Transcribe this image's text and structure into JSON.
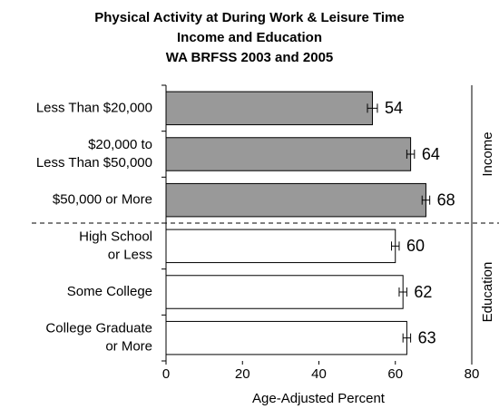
{
  "chart_data": {
    "type": "hbar",
    "title": "Physical Activity at During Work & Leisure Time\nIncome and Education\nWA BRFSS 2003 and 2005",
    "categories": [
      "Less Than $20,000",
      "$20,000 to\nLess Than $50,000",
      "$50,000 or More",
      "High School\nor Less",
      "Some College",
      "College Graduate\nor More"
    ],
    "series": [
      {
        "name": "Income",
        "color": "#999999",
        "values": [
          54,
          64,
          68,
          null,
          null,
          null
        ],
        "errors": [
          1.3,
          1,
          1,
          null,
          null,
          null
        ]
      },
      {
        "name": "Education",
        "color": "#ffffff",
        "values": [
          null,
          null,
          null,
          60,
          62,
          63
        ],
        "errors": [
          null,
          null,
          null,
          1,
          1,
          1
        ]
      }
    ],
    "xlabel": "Age-Adjusted Percent",
    "xlim": [
      0,
      80
    ],
    "xticks": [
      0,
      20,
      40,
      60,
      80
    ],
    "grid": false
  }
}
